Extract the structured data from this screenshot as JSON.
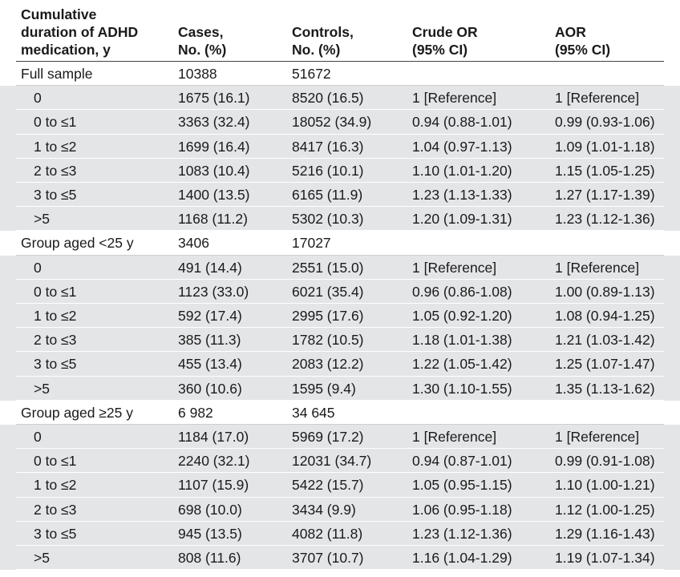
{
  "table": {
    "headers": [
      "Cumulative\nduration of ADHD\nmedication, y",
      "Cases,\nNo. (%)",
      "Controls,\nNo. (%)",
      "Crude OR\n(95% CI)",
      "AOR\n(95% CI)"
    ],
    "rows": [
      {
        "type": "group",
        "cells": [
          "Full sample",
          "10388",
          "51672",
          "",
          ""
        ]
      },
      {
        "type": "sub",
        "cells": [
          "0",
          "1675 (16.1)",
          "8520 (16.5)",
          "1 [Reference]",
          "1 [Reference]"
        ]
      },
      {
        "type": "sub",
        "cells": [
          "0 to ≤1",
          "3363 (32.4)",
          "18052 (34.9)",
          "0.94 (0.88-1.01)",
          "0.99 (0.93-1.06)"
        ]
      },
      {
        "type": "sub",
        "cells": [
          "1 to ≤2",
          "1699 (16.4)",
          "8417 (16.3)",
          "1.04 (0.97-1.13)",
          "1.09 (1.01-1.18)"
        ]
      },
      {
        "type": "sub",
        "cells": [
          "2 to ≤3",
          "1083 (10.4)",
          "5216 (10.1)",
          "1.10 (1.01-1.20)",
          "1.15 (1.05-1.25)"
        ]
      },
      {
        "type": "sub",
        "cells": [
          "3 to ≤5",
          "1400 (13.5)",
          "6165 (11.9)",
          "1.23 (1.13-1.33)",
          "1.27 (1.17-1.39)"
        ]
      },
      {
        "type": "sub",
        "cells": [
          ">5",
          "1168 (11.2)",
          "5302 (10.3)",
          "1.20 (1.09-1.31)",
          "1.23 (1.12-1.36)"
        ]
      },
      {
        "type": "group",
        "cells": [
          "Group aged <25 y",
          "3406",
          "17027",
          "",
          ""
        ]
      },
      {
        "type": "sub",
        "cells": [
          "0",
          "491 (14.4)",
          "2551 (15.0)",
          "1 [Reference]",
          "1 [Reference]"
        ]
      },
      {
        "type": "sub",
        "cells": [
          "0 to ≤1",
          "1123 (33.0)",
          "6021 (35.4)",
          "0.96 (0.86-1.08)",
          "1.00 (0.89-1.13)"
        ]
      },
      {
        "type": "sub",
        "cells": [
          "1 to ≤2",
          "592 (17.4)",
          "2995 (17.6)",
          "1.05 (0.92-1.20)",
          "1.08 (0.94-1.25)"
        ]
      },
      {
        "type": "sub",
        "cells": [
          "2 to ≤3",
          "385 (11.3)",
          "1782 (10.5)",
          "1.18 (1.01-1.38)",
          "1.21 (1.03-1.42)"
        ]
      },
      {
        "type": "sub",
        "cells": [
          "3 to ≤5",
          "455 (13.4)",
          "2083 (12.2)",
          "1.22 (1.05-1.42)",
          "1.25 (1.07-1.47)"
        ]
      },
      {
        "type": "sub",
        "cells": [
          ">5",
          "360 (10.6)",
          "1595 (9.4)",
          "1.30 (1.10-1.55)",
          "1.35 (1.13-1.62)"
        ]
      },
      {
        "type": "group",
        "cells": [
          "Group aged ≥25 y",
          "6 982",
          "34 645",
          "",
          ""
        ]
      },
      {
        "type": "sub",
        "cells": [
          "0",
          "1184 (17.0)",
          "5969 (17.2)",
          "1 [Reference]",
          "1 [Reference]"
        ]
      },
      {
        "type": "sub",
        "cells": [
          "0 to ≤1",
          "2240 (32.1)",
          "12031 (34.7)",
          "0.94 (0.87-1.01)",
          "0.99 (0.91-1.08)"
        ]
      },
      {
        "type": "sub",
        "cells": [
          "1 to ≤2",
          "1107 (15.9)",
          "5422 (15.7)",
          "1.05 (0.95-1.15)",
          "1.10 (1.00-1.21)"
        ]
      },
      {
        "type": "sub",
        "cells": [
          "2 to ≤3",
          "698 (10.0)",
          "3434 (9.9)",
          "1.06 (0.95-1.18)",
          "1.12 (1.00-1.25)"
        ]
      },
      {
        "type": "sub",
        "cells": [
          "3 to ≤5",
          "945 (13.5)",
          "4082 (11.8)",
          "1.23 (1.12-1.36)",
          "1.29 (1.16-1.43)"
        ]
      },
      {
        "type": "sub",
        "cells": [
          ">5",
          "808 (11.6)",
          "3707 (10.7)",
          "1.16 (1.04-1.29)",
          "1.19 (1.07-1.34)"
        ]
      }
    ]
  }
}
